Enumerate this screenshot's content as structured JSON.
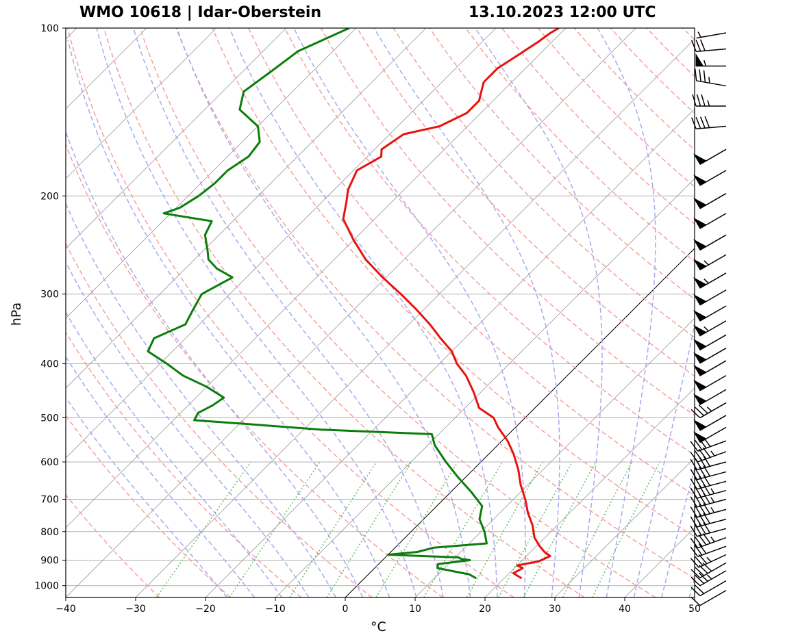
{
  "header": {
    "station": "WMO 10618 | Idar-Oberstein",
    "datetime": "13.10.2023 12:00 UTC"
  },
  "chart_data": {
    "type": "line",
    "title_left": "WMO 10618 | Idar-Oberstein",
    "title_right": "13.10.2023 12:00 UTC",
    "xlabel": "°C",
    "ylabel": "hPa",
    "xlim": [
      -40,
      50
    ],
    "ylim": [
      1050,
      100
    ],
    "skew": 45,
    "x_ticks": [
      -40,
      -30,
      -20,
      -10,
      0,
      10,
      20,
      30,
      40,
      50
    ],
    "x_tick_labels": [
      "−40",
      "−30",
      "−20",
      "−10",
      "0",
      "10",
      "20",
      "30",
      "40",
      "50"
    ],
    "y_ticks": [
      100,
      200,
      300,
      400,
      500,
      600,
      700,
      800,
      900,
      1000
    ],
    "y_tick_labels": [
      "100",
      "200",
      "300",
      "400",
      "500",
      "600",
      "700",
      "800",
      "900",
      "1000"
    ],
    "colors": {
      "temperature": "#e8120c",
      "dewpoint": "#0a7d0a",
      "dry_adiabat": "#f5a0a0",
      "moist_adiabat": "#a8a8f0",
      "mixing_ratio": "#66bb66",
      "isotherm": "#9a9a9a",
      "grid": "#b0b0b0"
    },
    "series": [
      {
        "name": "temperature",
        "pressure": [
          970,
          950,
          930,
          920,
          905,
          885,
          870,
          850,
          820,
          780,
          740,
          700,
          660,
          620,
          580,
          550,
          520,
          500,
          480,
          450,
          420,
          400,
          380,
          360,
          340,
          320,
          300,
          280,
          260,
          240,
          220,
          205,
          195,
          180,
          170,
          165,
          160,
          155,
          150,
          142,
          135,
          130,
          125,
          118,
          112,
          106,
          102,
          100
        ],
        "values": [
          22.5,
          20.6,
          21.2,
          20.0,
          22.5,
          23.4,
          22.0,
          20.5,
          18.5,
          16.5,
          14.0,
          11.7,
          9.0,
          6.5,
          3.5,
          0.8,
          -2.5,
          -4.5,
          -8.0,
          -11.0,
          -14.5,
          -17.5,
          -20.0,
          -23.5,
          -27.0,
          -31.0,
          -35.5,
          -40.5,
          -45.5,
          -50.0,
          -54.5,
          -56.5,
          -58.0,
          -59.5,
          -58.0,
          -59.0,
          -58.5,
          -58.0,
          -54.0,
          -52.0,
          -52.0,
          -53.0,
          -54.0,
          -54.0,
          -53.0,
          -52.0,
          -51.5,
          -51.0
        ]
      },
      {
        "name": "dewpoint",
        "pressure": [
          970,
          955,
          930,
          915,
          900,
          895,
          890,
          880,
          870,
          855,
          840,
          800,
          760,
          720,
          680,
          640,
          600,
          560,
          535,
          525,
          515,
          505,
          490,
          475,
          460,
          440,
          420,
          400,
          380,
          360,
          340,
          320,
          300,
          280,
          270,
          260,
          250,
          235,
          222,
          215,
          210,
          200,
          190,
          180,
          170,
          160,
          150,
          140,
          130,
          120,
          110,
          100
        ],
        "values": [
          16.0,
          14.5,
          9.0,
          8.5,
          12.5,
          11.0,
          10.5,
          0.0,
          3.8,
          5.5,
          12.5,
          10.5,
          8.0,
          6.5,
          3.0,
          -1.0,
          -5.0,
          -9.0,
          -11.0,
          -27.5,
          -37.0,
          -47.0,
          -47.5,
          -46.5,
          -46.0,
          -50.0,
          -55.0,
          -59.0,
          -63.5,
          -64.5,
          -62.0,
          -63.0,
          -64.0,
          -62.0,
          -65.5,
          -68.0,
          -69.5,
          -72.0,
          -73.0,
          -81.0,
          -79.5,
          -78.5,
          -78.0,
          -78.0,
          -77.0,
          -77.5,
          -80.0,
          -85.0,
          -87.0,
          -86.0,
          -85.0,
          -81.0
        ]
      }
    ],
    "wind_barbs": {
      "pressure": [
        1020,
        980,
        940,
        910,
        880,
        850,
        820,
        790,
        760,
        730,
        700,
        675,
        650,
        625,
        600,
        575,
        550,
        520,
        495,
        470,
        445,
        420,
        395,
        375,
        355,
        335,
        315,
        295,
        275,
        255,
        235,
        215,
        198,
        180,
        165,
        150,
        138,
        127,
        117,
        109,
        102
      ],
      "speed_kt": [
        10,
        20,
        35,
        40,
        35,
        30,
        45,
        40,
        40,
        45,
        45,
        45,
        40,
        40,
        40,
        45,
        40,
        50,
        50,
        35,
        50,
        50,
        50,
        50,
        50,
        55,
        50,
        50,
        55,
        55,
        50,
        50,
        50,
        50,
        50,
        40,
        35,
        35,
        55,
        30,
        5
      ],
      "direction_deg": [
        240,
        240,
        240,
        240,
        245,
        250,
        250,
        255,
        255,
        255,
        255,
        255,
        255,
        255,
        255,
        250,
        250,
        240,
        240,
        240,
        240,
        240,
        240,
        240,
        240,
        240,
        240,
        240,
        240,
        240,
        240,
        240,
        240,
        240,
        240,
        265,
        270,
        280,
        270,
        265,
        260
      ]
    }
  }
}
